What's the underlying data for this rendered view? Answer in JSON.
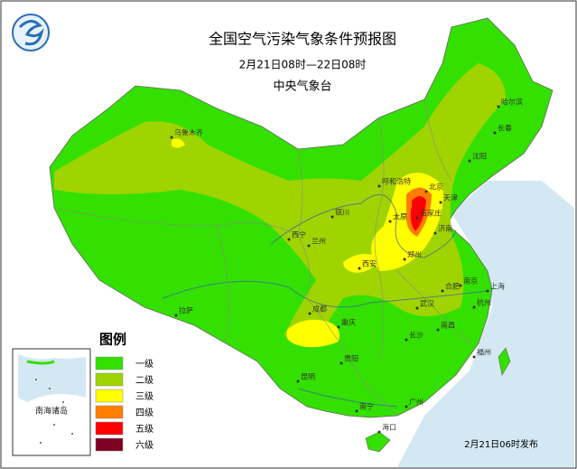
{
  "title": "全国空气污染气象条件预报图",
  "subtitle": "2月21日08时—22日08时",
  "issuer": "中央气象台",
  "legend": {
    "title": "图例",
    "items": [
      {
        "label": "一级",
        "color": "#33e000"
      },
      {
        "label": "二级",
        "color": "#9fd400"
      },
      {
        "label": "三级",
        "color": "#ffff00"
      },
      {
        "label": "四级",
        "color": "#ff7e00"
      },
      {
        "label": "五级",
        "color": "#ff0000"
      },
      {
        "label": "六级",
        "color": "#7e0023"
      }
    ]
  },
  "cities": [
    "乌鲁木齐",
    "哈尔滨",
    "长春",
    "沈阳",
    "呼和浩特",
    "北京",
    "天津",
    "石家庄",
    "太原",
    "济南",
    "银川",
    "西宁",
    "兰州",
    "西安",
    "郑州",
    "合肥",
    "南京",
    "上海",
    "杭州",
    "武汉",
    "成都",
    "重庆",
    "拉萨",
    "长沙",
    "南昌",
    "福州",
    "贵阳",
    "昆明",
    "南宁",
    "广州",
    "海口"
  ],
  "inset": {
    "label": "南海诸岛"
  },
  "footer": "2月21日06时发布"
}
